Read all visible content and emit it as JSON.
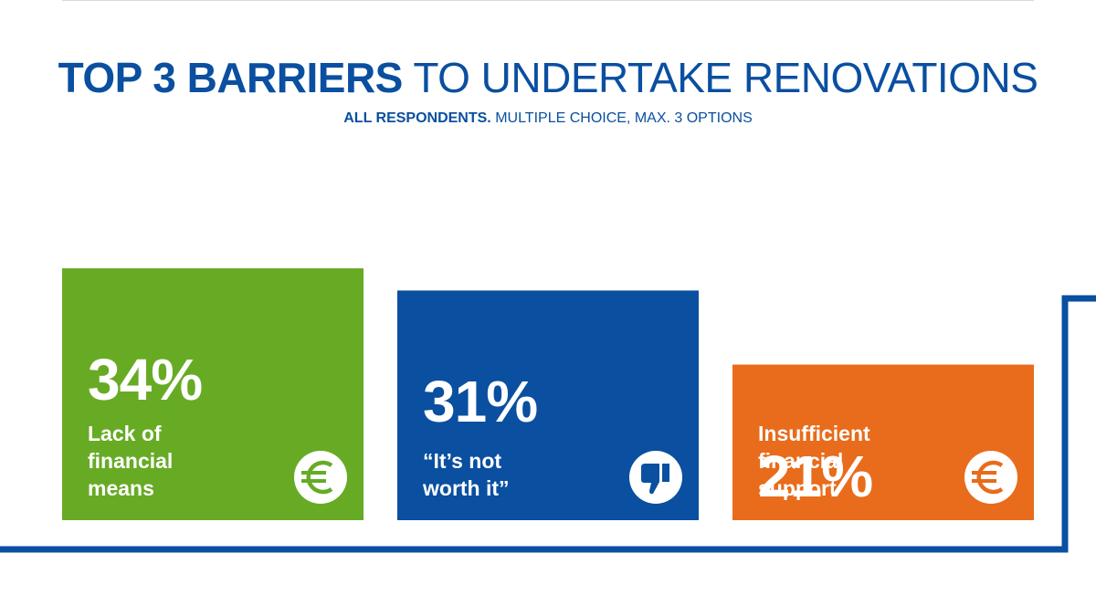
{
  "header": {
    "title_bold": "TOP 3 BARRIERS",
    "title_rest": "TO UNDERTAKE RENOVATIONS",
    "subtitle_bold": "ALL RESPONDENTS.",
    "subtitle_rest": "MULTIPLE CHOICE, MAX. 3 OPTIONS"
  },
  "chart_data": {
    "type": "bar",
    "categories": [
      "Lack of financial means",
      "“It’s not worth it”",
      "Insufficient financial support"
    ],
    "values": [
      34,
      31,
      21
    ],
    "value_labels": [
      "34%",
      "31%",
      "21%"
    ],
    "label_lines": [
      [
        "Lack of",
        "financial",
        "means"
      ],
      [
        "“It’s not",
        "worth it”"
      ],
      [
        "Insufficient",
        "financial",
        "support"
      ]
    ],
    "colors": [
      "#67ab25",
      "#0a4fa0",
      "#e86c1b"
    ],
    "icons": [
      "euro-icon",
      "thumbs-down-icon",
      "euro-icon"
    ],
    "unit": "%",
    "ylim": [
      0,
      34
    ],
    "accent": "#0a4fa0"
  }
}
